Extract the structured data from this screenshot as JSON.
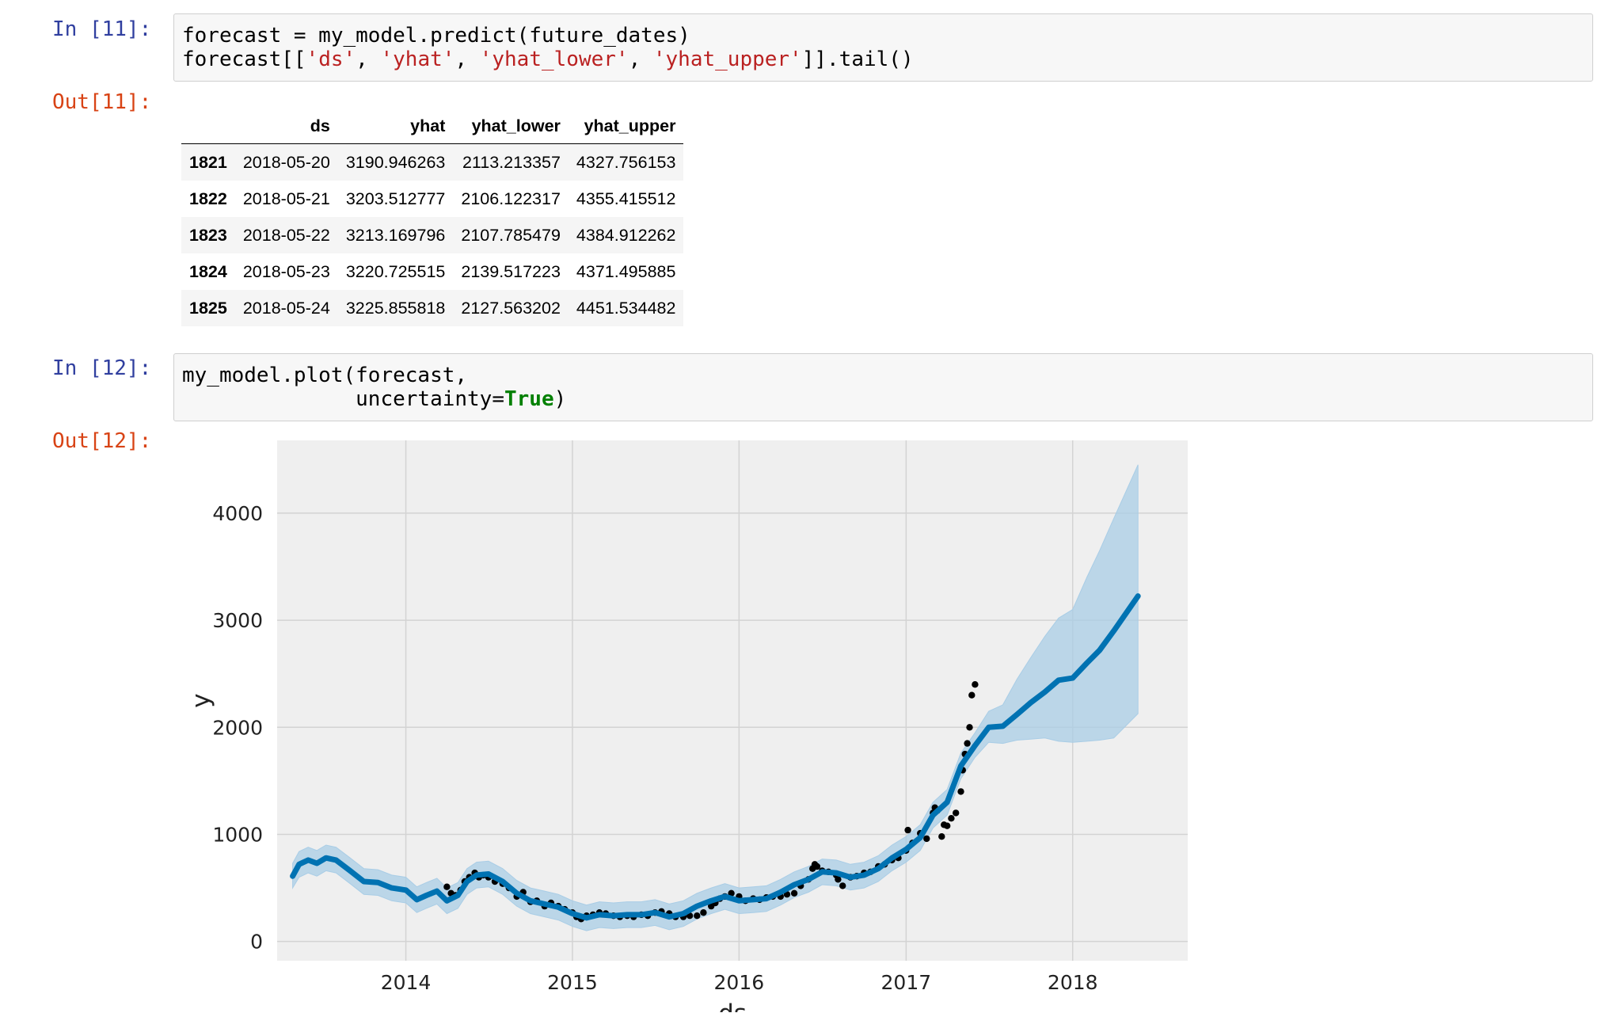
{
  "cells": [
    {
      "in_prompt": "In [11]:",
      "code_lines": [
        [
          {
            "t": "forecast = my_model.predict(future_dates)",
            "c": ""
          }
        ],
        [
          {
            "t": "forecast[[",
            "c": ""
          },
          {
            "t": "'ds'",
            "c": "str"
          },
          {
            "t": ", ",
            "c": ""
          },
          {
            "t": "'yhat'",
            "c": "str"
          },
          {
            "t": ", ",
            "c": ""
          },
          {
            "t": "'yhat_lower'",
            "c": "str"
          },
          {
            "t": ", ",
            "c": ""
          },
          {
            "t": "'yhat_upper'",
            "c": "str"
          },
          {
            "t": "]].tail()",
            "c": ""
          }
        ]
      ],
      "out_prompt": "Out[11]:"
    },
    {
      "in_prompt": "In [12]:",
      "code_lines": [
        [
          {
            "t": "my_model.plot(forecast,",
            "c": ""
          }
        ],
        [
          {
            "t": "              uncertainty=",
            "c": ""
          },
          {
            "t": "True",
            "c": "kw"
          },
          {
            "t": ")",
            "c": ""
          }
        ]
      ],
      "out_prompt": "Out[12]:"
    }
  ],
  "table": {
    "columns": [
      "",
      "ds",
      "yhat",
      "yhat_lower",
      "yhat_upper"
    ],
    "rows": [
      [
        "1821",
        "2018-05-20",
        "3190.946263",
        "2113.213357",
        "4327.756153"
      ],
      [
        "1822",
        "2018-05-21",
        "3203.512777",
        "2106.122317",
        "4355.415512"
      ],
      [
        "1823",
        "2018-05-22",
        "3213.169796",
        "2107.785479",
        "4384.912262"
      ],
      [
        "1824",
        "2018-05-23",
        "3220.725515",
        "2139.517223",
        "4371.495885"
      ],
      [
        "1825",
        "2018-05-24",
        "3225.855818",
        "2127.563202",
        "4451.534482"
      ]
    ]
  },
  "chart_data": {
    "type": "line",
    "xlabel": "ds",
    "ylabel": "y",
    "xticks": [
      "2014",
      "2015",
      "2016",
      "2017",
      "2018"
    ],
    "yticks": [
      "0",
      "1000",
      "2000",
      "3000",
      "4000"
    ],
    "xlim": [
      "2013-03-25",
      "2018-09-10"
    ],
    "ylim": [
      -180,
      4680
    ],
    "grid": true,
    "colors": {
      "background": "#efefef",
      "grid": "#d3d3d3",
      "forecast": "#0072b2",
      "band": "#a9cde6",
      "observed": "#000000"
    },
    "forecast": {
      "ds": [
        "2013-04-28",
        "2013-05-12",
        "2013-06-01",
        "2013-06-20",
        "2013-07-10",
        "2013-08-01",
        "2013-09-01",
        "2013-10-01",
        "2013-11-01",
        "2013-12-01",
        "2014-01-01",
        "2014-01-25",
        "2014-02-15",
        "2014-03-10",
        "2014-04-01",
        "2014-04-25",
        "2014-05-15",
        "2014-06-05",
        "2014-07-01",
        "2014-08-01",
        "2014-09-01",
        "2014-10-01",
        "2014-11-01",
        "2014-12-01",
        "2015-01-01",
        "2015-02-01",
        "2015-03-01",
        "2015-04-01",
        "2015-05-01",
        "2015-06-01",
        "2015-07-01",
        "2015-08-01",
        "2015-09-01",
        "2015-10-01",
        "2015-11-01",
        "2015-12-01",
        "2016-01-01",
        "2016-02-01",
        "2016-03-01",
        "2016-04-01",
        "2016-05-01",
        "2016-06-01",
        "2016-07-01",
        "2016-08-01",
        "2016-09-01",
        "2016-10-01",
        "2016-11-01",
        "2016-12-01",
        "2017-01-01",
        "2017-02-01",
        "2017-03-01",
        "2017-04-01",
        "2017-05-01",
        "2017-06-01",
        "2017-07-01",
        "2017-08-01",
        "2017-09-01",
        "2017-10-01",
        "2017-11-01",
        "2017-12-01",
        "2018-01-01",
        "2018-02-01",
        "2018-03-01",
        "2018-04-01",
        "2018-05-24"
      ],
      "yhat": [
        610,
        720,
        760,
        730,
        780,
        760,
        660,
        560,
        550,
        500,
        480,
        390,
        430,
        470,
        380,
        430,
        560,
        620,
        630,
        560,
        450,
        380,
        350,
        320,
        260,
        220,
        250,
        240,
        250,
        250,
        270,
        230,
        260,
        330,
        380,
        420,
        380,
        390,
        400,
        460,
        530,
        580,
        650,
        640,
        600,
        620,
        680,
        780,
        860,
        970,
        1180,
        1300,
        1640,
        1830,
        2000,
        2010,
        2120,
        2230,
        2330,
        2440,
        2460,
        2600,
        2720,
        2900,
        3226
      ],
      "yhat_lower": [
        500,
        600,
        640,
        610,
        660,
        640,
        540,
        440,
        430,
        380,
        360,
        270,
        310,
        350,
        260,
        310,
        440,
        500,
        510,
        440,
        330,
        260,
        230,
        200,
        140,
        100,
        130,
        120,
        130,
        130,
        150,
        110,
        140,
        210,
        260,
        300,
        260,
        270,
        280,
        340,
        410,
        460,
        530,
        520,
        480,
        500,
        560,
        660,
        740,
        850,
        1060,
        1180,
        1520,
        1720,
        1860,
        1850,
        1880,
        1890,
        1900,
        1870,
        1860,
        1870,
        1880,
        1900,
        2128
      ],
      "yhat_upper": [
        730,
        840,
        880,
        850,
        900,
        880,
        780,
        680,
        670,
        620,
        600,
        510,
        550,
        590,
        500,
        550,
        680,
        740,
        750,
        680,
        570,
        500,
        470,
        440,
        380,
        340,
        370,
        360,
        370,
        370,
        390,
        350,
        380,
        450,
        500,
        540,
        500,
        510,
        520,
        580,
        650,
        700,
        770,
        760,
        720,
        740,
        800,
        900,
        980,
        1090,
        1300,
        1420,
        1760,
        1950,
        2150,
        2210,
        2450,
        2650,
        2850,
        3020,
        3100,
        3400,
        3650,
        3950,
        4452
      ]
    },
    "observed": {
      "ds": [
        "2014-04-01",
        "2014-04-10",
        "2014-04-20",
        "2014-05-01",
        "2014-05-10",
        "2014-05-20",
        "2014-06-01",
        "2014-06-10",
        "2014-06-20",
        "2014-07-01",
        "2014-07-15",
        "2014-08-01",
        "2014-08-15",
        "2014-09-01",
        "2014-09-15",
        "2014-10-01",
        "2014-10-15",
        "2014-11-01",
        "2014-11-15",
        "2014-12-01",
        "2014-12-15",
        "2015-01-01",
        "2015-01-10",
        "2015-01-20",
        "2015-02-01",
        "2015-02-15",
        "2015-03-01",
        "2015-03-15",
        "2015-04-01",
        "2015-04-15",
        "2015-05-01",
        "2015-05-15",
        "2015-06-01",
        "2015-06-15",
        "2015-07-01",
        "2015-07-15",
        "2015-08-01",
        "2015-08-15",
        "2015-09-01",
        "2015-09-15",
        "2015-10-01",
        "2015-10-15",
        "2015-11-01",
        "2015-11-10",
        "2015-11-20",
        "2015-12-01",
        "2015-12-15",
        "2016-01-01",
        "2016-01-15",
        "2016-02-01",
        "2016-02-15",
        "2016-03-01",
        "2016-03-15",
        "2016-04-01",
        "2016-04-15",
        "2016-05-01",
        "2016-05-15",
        "2016-06-01",
        "2016-06-10",
        "2016-06-15",
        "2016-06-20",
        "2016-07-01",
        "2016-07-15",
        "2016-08-01",
        "2016-08-05",
        "2016-08-15",
        "2016-09-01",
        "2016-09-15",
        "2016-10-01",
        "2016-10-15",
        "2016-11-01",
        "2016-11-15",
        "2016-12-01",
        "2016-12-15",
        "2017-01-01",
        "2017-01-05",
        "2017-01-15",
        "2017-02-01",
        "2017-02-15",
        "2017-03-01",
        "2017-03-05",
        "2017-03-10",
        "2017-03-20",
        "2017-03-25",
        "2017-04-01",
        "2017-04-10",
        "2017-04-20",
        "2017-05-01",
        "2017-05-05",
        "2017-05-10",
        "2017-05-15",
        "2017-05-20",
        "2017-05-25",
        "2017-06-01"
      ],
      "y": [
        510,
        450,
        430,
        480,
        560,
        600,
        640,
        600,
        620,
        600,
        560,
        540,
        500,
        420,
        460,
        370,
        380,
        330,
        360,
        330,
        300,
        270,
        230,
        210,
        240,
        250,
        270,
        260,
        240,
        230,
        240,
        230,
        250,
        240,
        270,
        280,
        260,
        230,
        230,
        240,
        240,
        270,
        330,
        360,
        400,
        420,
        450,
        420,
        380,
        400,
        390,
        410,
        420,
        420,
        440,
        450,
        520,
        580,
        680,
        720,
        700,
        660,
        650,
        620,
        580,
        520,
        600,
        610,
        640,
        650,
        700,
        720,
        760,
        780,
        850,
        1040,
        920,
        1010,
        960,
        1200,
        1250,
        1220,
        980,
        1090,
        1080,
        1150,
        1200,
        1400,
        1600,
        1750,
        1850,
        2000,
        2300,
        2400
      ]
    }
  }
}
